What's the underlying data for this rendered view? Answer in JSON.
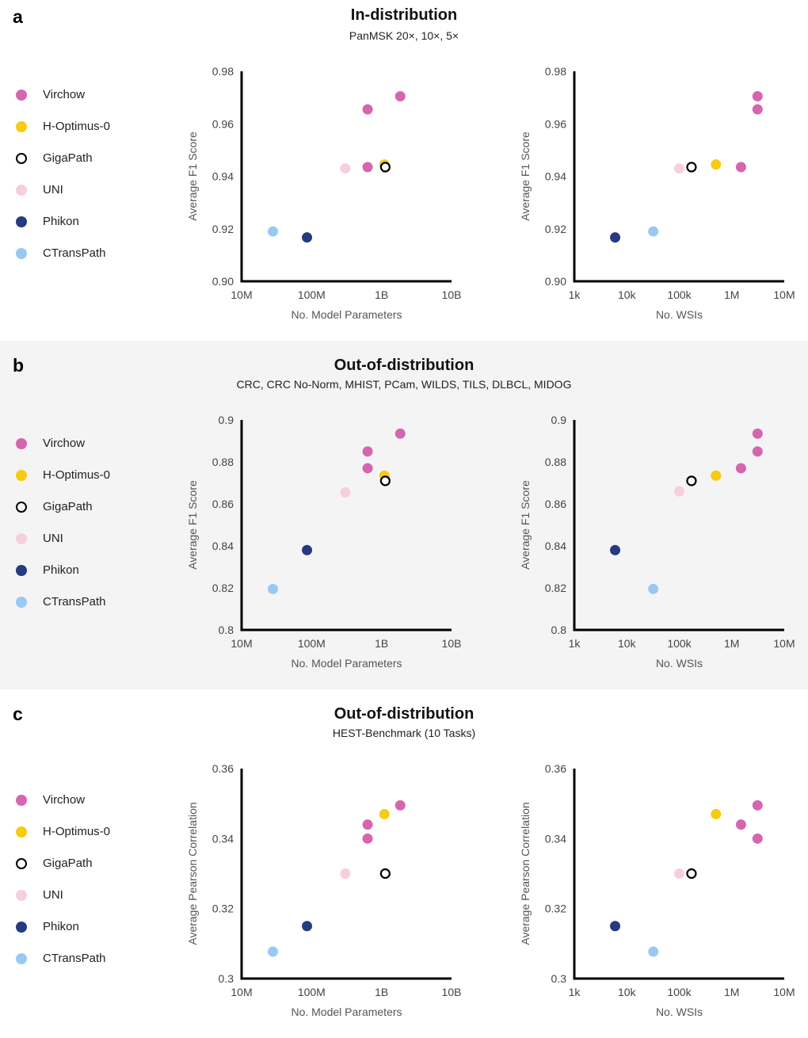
{
  "legend": [
    {
      "label": "Virchow",
      "color": "#d665b0",
      "hollow": false
    },
    {
      "label": "H-Optimus-0",
      "color": "#f7cb0f",
      "hollow": false
    },
    {
      "label": "GigaPath",
      "color": "#000000",
      "hollow": true
    },
    {
      "label": "UNI",
      "color": "#f7cfd9",
      "hollow": false
    },
    {
      "label": "Phikon",
      "color": "#263a7f",
      "hollow": false
    },
    {
      "label": "CTransPath",
      "color": "#9ac8f4",
      "hollow": false
    }
  ],
  "panels": [
    {
      "letter": "a",
      "title": "In-distribution",
      "subtitle": "PanMSK 20×, 10×, 5×"
    },
    {
      "letter": "b",
      "title": "Out-of-distribution",
      "subtitle": "CRC, CRC No-Norm, MHIST, PCam, WILDS, TILS, DLBCL, MIDOG"
    },
    {
      "letter": "c",
      "title": "Out-of-distribution",
      "subtitle": "HEST-Benchmark (10 Tasks)"
    }
  ],
  "chart_data": [
    {
      "type": "scatter",
      "panel": "a",
      "xaxis": "log",
      "xlabel": "No. Model Parameters",
      "ylabel": "Average F1 Score",
      "xlim": [
        10000000,
        10000000000
      ],
      "xticks": [
        10000000,
        100000000,
        1000000000,
        10000000000
      ],
      "xticklabels": [
        "10M",
        "100M",
        "1B",
        "10B"
      ],
      "ylim": [
        0.9,
        0.98
      ],
      "yticks": [
        0.9,
        0.92,
        0.94,
        0.96,
        0.98
      ],
      "yticklabels": [
        "0.90",
        "0.92",
        "0.94",
        "0.96",
        "0.98"
      ],
      "points": [
        {
          "model": "Virchow",
          "x": 632000000,
          "y": 0.9655
        },
        {
          "model": "Virchow",
          "x": 632000000,
          "y": 0.9435
        },
        {
          "model": "Virchow",
          "x": 1850000000,
          "y": 0.9705
        },
        {
          "model": "H-Optimus-0",
          "x": 1100000000,
          "y": 0.9445
        },
        {
          "model": "GigaPath",
          "x": 1130000000,
          "y": 0.9435
        },
        {
          "model": "UNI",
          "x": 303000000,
          "y": 0.943
        },
        {
          "model": "Phikon",
          "x": 86000000,
          "y": 0.9167
        },
        {
          "model": "CTransPath",
          "x": 28000000,
          "y": 0.919
        }
      ]
    },
    {
      "type": "scatter",
      "panel": "a",
      "xaxis": "log",
      "xlabel": "No. WSIs",
      "ylabel": "Average F1 Score",
      "xlim": [
        1000,
        10000000
      ],
      "xticks": [
        1000,
        10000,
        100000,
        1000000,
        10000000
      ],
      "xticklabels": [
        "1k",
        "10k",
        "100k",
        "1M",
        "10M"
      ],
      "ylim": [
        0.9,
        0.98
      ],
      "yticks": [
        0.9,
        0.92,
        0.94,
        0.96,
        0.98
      ],
      "yticklabels": [
        "0.90",
        "0.92",
        "0.94",
        "0.96",
        "0.98"
      ],
      "points": [
        {
          "model": "Virchow",
          "x": 1500000,
          "y": 0.9435
        },
        {
          "model": "Virchow",
          "x": 3100000,
          "y": 0.9655
        },
        {
          "model": "Virchow",
          "x": 3100000,
          "y": 0.9705
        },
        {
          "model": "H-Optimus-0",
          "x": 500000,
          "y": 0.9445
        },
        {
          "model": "GigaPath",
          "x": 171000,
          "y": 0.9435
        },
        {
          "model": "UNI",
          "x": 100000,
          "y": 0.943
        },
        {
          "model": "Phikon",
          "x": 6000,
          "y": 0.9167
        },
        {
          "model": "CTransPath",
          "x": 32000,
          "y": 0.919
        }
      ]
    },
    {
      "type": "scatter",
      "panel": "b",
      "xaxis": "log",
      "xlabel": "No. Model Parameters",
      "ylabel": "Average F1 Score",
      "xlim": [
        10000000,
        10000000000
      ],
      "xticks": [
        10000000,
        100000000,
        1000000000,
        10000000000
      ],
      "xticklabels": [
        "10M",
        "100M",
        "1B",
        "10B"
      ],
      "ylim": [
        0.8,
        0.9
      ],
      "yticks": [
        0.8,
        0.82,
        0.84,
        0.86,
        0.88,
        0.9
      ],
      "yticklabels": [
        "0.8",
        "0.82",
        "0.84",
        "0.86",
        "0.88",
        "0.9"
      ],
      "points": [
        {
          "model": "Virchow",
          "x": 632000000,
          "y": 0.885
        },
        {
          "model": "Virchow",
          "x": 632000000,
          "y": 0.877
        },
        {
          "model": "Virchow",
          "x": 1850000000,
          "y": 0.8935
        },
        {
          "model": "H-Optimus-0",
          "x": 1100000000,
          "y": 0.8735
        },
        {
          "model": "GigaPath",
          "x": 1130000000,
          "y": 0.871
        },
        {
          "model": "UNI",
          "x": 303000000,
          "y": 0.8655
        },
        {
          "model": "Phikon",
          "x": 86000000,
          "y": 0.838
        },
        {
          "model": "CTransPath",
          "x": 28000000,
          "y": 0.8195
        }
      ]
    },
    {
      "type": "scatter",
      "panel": "b",
      "xaxis": "log",
      "xlabel": "No. WSIs",
      "ylabel": "Average F1 Score",
      "xlim": [
        1000,
        10000000
      ],
      "xticks": [
        1000,
        10000,
        100000,
        1000000,
        10000000
      ],
      "xticklabels": [
        "1k",
        "10k",
        "100k",
        "1M",
        "10M"
      ],
      "ylim": [
        0.8,
        0.9
      ],
      "yticks": [
        0.8,
        0.82,
        0.84,
        0.86,
        0.88,
        0.9
      ],
      "yticklabels": [
        "0.8",
        "0.82",
        "0.84",
        "0.86",
        "0.88",
        "0.9"
      ],
      "points": [
        {
          "model": "Virchow",
          "x": 1500000,
          "y": 0.877
        },
        {
          "model": "Virchow",
          "x": 3100000,
          "y": 0.885
        },
        {
          "model": "Virchow",
          "x": 3100000,
          "y": 0.8935
        },
        {
          "model": "H-Optimus-0",
          "x": 500000,
          "y": 0.8735
        },
        {
          "model": "GigaPath",
          "x": 171000,
          "y": 0.871
        },
        {
          "model": "UNI",
          "x": 100000,
          "y": 0.866
        },
        {
          "model": "Phikon",
          "x": 6000,
          "y": 0.838
        },
        {
          "model": "CTransPath",
          "x": 32000,
          "y": 0.8195
        }
      ]
    },
    {
      "type": "scatter",
      "panel": "c",
      "xaxis": "log",
      "xlabel": "No. Model Parameters",
      "ylabel": "Average Pearson Correlation",
      "xlim": [
        10000000,
        10000000000
      ],
      "xticks": [
        10000000,
        100000000,
        1000000000,
        10000000000
      ],
      "xticklabels": [
        "10M",
        "100M",
        "1B",
        "10B"
      ],
      "ylim": [
        0.3,
        0.36
      ],
      "yticks": [
        0.3,
        0.32,
        0.34,
        0.36
      ],
      "yticklabels": [
        "0.3",
        "0.32",
        "0.34",
        "0.36"
      ],
      "points": [
        {
          "model": "Virchow",
          "x": 632000000,
          "y": 0.344
        },
        {
          "model": "Virchow",
          "x": 632000000,
          "y": 0.34
        },
        {
          "model": "Virchow",
          "x": 1850000000,
          "y": 0.3495
        },
        {
          "model": "H-Optimus-0",
          "x": 1100000000,
          "y": 0.347
        },
        {
          "model": "GigaPath",
          "x": 1130000000,
          "y": 0.33
        },
        {
          "model": "UNI",
          "x": 303000000,
          "y": 0.33
        },
        {
          "model": "Phikon",
          "x": 86000000,
          "y": 0.315
        },
        {
          "model": "CTransPath",
          "x": 28000000,
          "y": 0.3077
        }
      ]
    },
    {
      "type": "scatter",
      "panel": "c",
      "xaxis": "log",
      "xlabel": "No. WSIs",
      "ylabel": "Average Pearson Correlation",
      "xlim": [
        1000,
        10000000
      ],
      "xticks": [
        1000,
        10000,
        100000,
        1000000,
        10000000
      ],
      "xticklabels": [
        "1k",
        "10k",
        "100k",
        "1M",
        "10M"
      ],
      "ylim": [
        0.3,
        0.36
      ],
      "yticks": [
        0.3,
        0.32,
        0.34,
        0.36
      ],
      "yticklabels": [
        "0.3",
        "0.32",
        "0.34",
        "0.36"
      ],
      "points": [
        {
          "model": "Virchow",
          "x": 1500000,
          "y": 0.344
        },
        {
          "model": "Virchow",
          "x": 3100000,
          "y": 0.34
        },
        {
          "model": "Virchow",
          "x": 3100000,
          "y": 0.3495
        },
        {
          "model": "H-Optimus-0",
          "x": 500000,
          "y": 0.347
        },
        {
          "model": "GigaPath",
          "x": 171000,
          "y": 0.33
        },
        {
          "model": "UNI",
          "x": 100000,
          "y": 0.33
        },
        {
          "model": "Phikon",
          "x": 6000,
          "y": 0.315
        },
        {
          "model": "CTransPath",
          "x": 32000,
          "y": 0.3077
        }
      ]
    }
  ]
}
